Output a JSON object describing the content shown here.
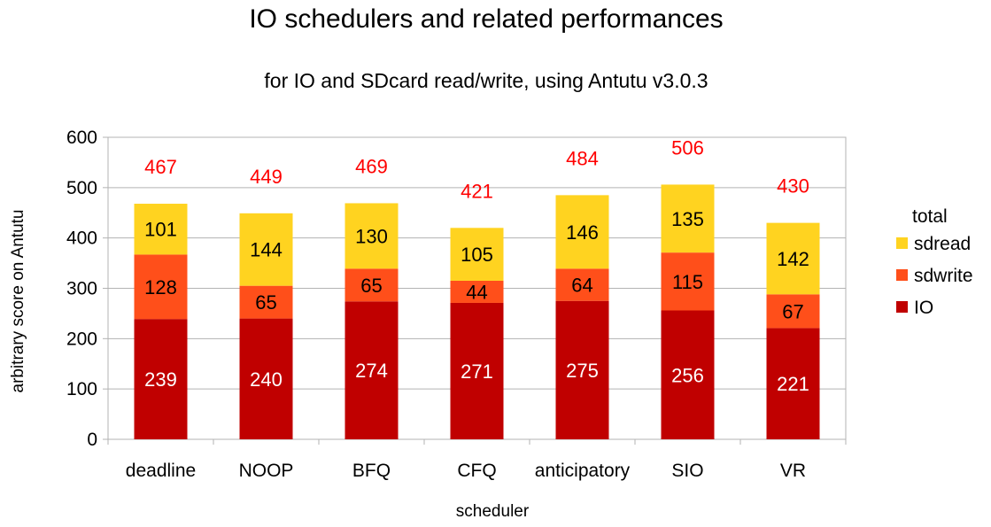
{
  "chart_data": {
    "type": "bar",
    "stacked": true,
    "title": "IO schedulers and related performances",
    "subtitle": "for IO and SDcard read/write, using Antutu v3.0.3",
    "xlabel": "scheduler",
    "ylabel": "arbitrary score on Antutu",
    "ylim": [
      0,
      600
    ],
    "yticks": [
      "0",
      "100",
      "200",
      "300",
      "400",
      "500",
      "600"
    ],
    "grid": true,
    "legend_position": "right",
    "legend_title": "total",
    "categories": [
      "deadline",
      "NOOP",
      "BFQ",
      "CFQ",
      "anticipatory",
      "SIO",
      "VR"
    ],
    "series": [
      {
        "name": "IO",
        "color": "#c00000",
        "label_color": "#ffffff",
        "values": [
          239,
          240,
          274,
          271,
          275,
          256,
          221
        ]
      },
      {
        "name": "sdwrite",
        "color": "#ff4f1a",
        "label_color": "#000000",
        "values": [
          128,
          65,
          65,
          44,
          64,
          115,
          67
        ]
      },
      {
        "name": "sdread",
        "color": "#ffd320",
        "label_color": "#000000",
        "values": [
          101,
          144,
          130,
          105,
          146,
          135,
          142
        ]
      }
    ],
    "totals": [
      467,
      449,
      469,
      421,
      484,
      506,
      430
    ],
    "total_color": "#ff0000"
  }
}
